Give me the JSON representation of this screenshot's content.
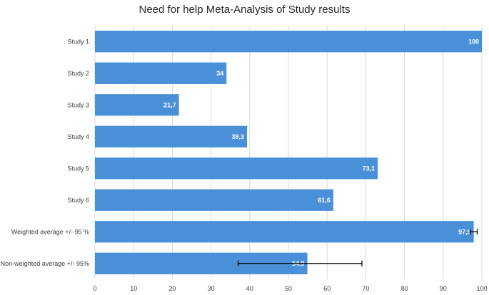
{
  "chart_data": {
    "type": "bar",
    "orientation": "horizontal",
    "title": "Need for help Meta-Analysis of Study results",
    "categories": [
      "Study 1",
      "Study 2",
      "Study 3",
      "Study 4",
      "Study 5",
      "Study 6",
      "Weighted average +/- 95 %",
      "Non-weighted average +/- 95%"
    ],
    "values": [
      100,
      34,
      21.7,
      39.3,
      73.1,
      61.6,
      97.9,
      54.9
    ],
    "data_labels": [
      "100",
      "34",
      "21,7",
      "39,3",
      "73,1",
      "61,6",
      "97,9",
      "54,9"
    ],
    "error_bars": [
      null,
      null,
      null,
      null,
      null,
      null,
      [
        97.0,
        98.8
      ],
      [
        37.0,
        69.0
      ]
    ],
    "xlim": [
      0,
      100
    ],
    "xticks": [
      0,
      10,
      20,
      30,
      40,
      50,
      60,
      70,
      80,
      90,
      100
    ],
    "grid": true,
    "legend": "none",
    "bar_color": "#4a90d9"
  }
}
